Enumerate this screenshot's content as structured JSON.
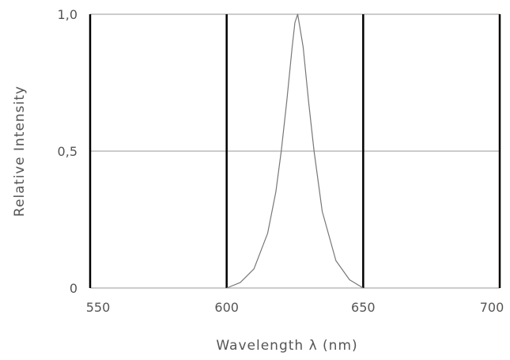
{
  "chart_data": {
    "type": "line",
    "title": "",
    "xlabel": "Wavelength λ (nm)",
    "ylabel": "Relative Intensity",
    "xlim": [
      550,
      700
    ],
    "ylim": [
      0,
      1.0
    ],
    "x_ticks": [
      550,
      600,
      650,
      700
    ],
    "x_tick_labels": [
      "550",
      "600",
      "650",
      "700"
    ],
    "y_ticks": [
      0,
      0.5,
      1.0
    ],
    "y_tick_labels": [
      "0",
      "0,5",
      "1,0"
    ],
    "grid": true,
    "series": [
      {
        "x": [
          600,
          605,
          610,
          615,
          618,
          620,
          622,
          624,
          625,
          626,
          628,
          630,
          632,
          635,
          640,
          645,
          650
        ],
        "values": [
          0.0,
          0.02,
          0.07,
          0.2,
          0.35,
          0.5,
          0.68,
          0.88,
          0.97,
          1.0,
          0.88,
          0.68,
          0.5,
          0.28,
          0.1,
          0.03,
          0.0
        ]
      }
    ],
    "colors": {
      "axes": "#000000",
      "gridline": "#999999",
      "curve": "#777777",
      "text": "#555555"
    }
  }
}
